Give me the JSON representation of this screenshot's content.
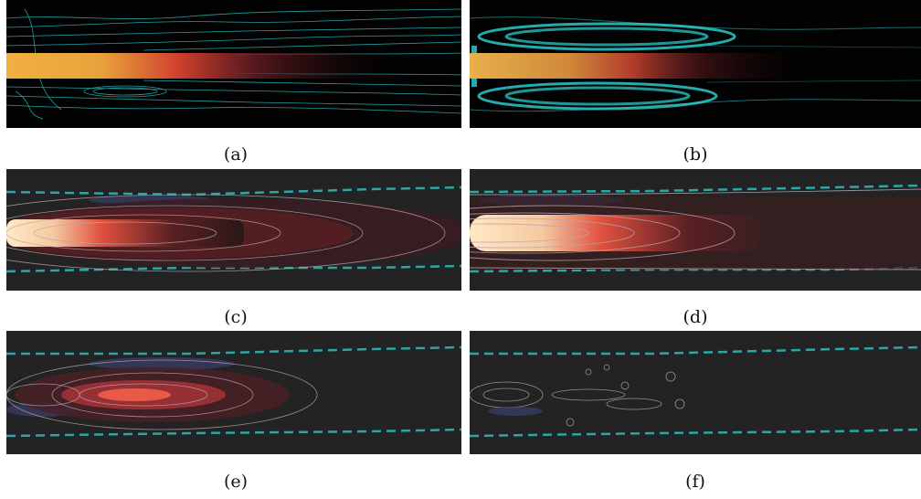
{
  "figure": {
    "panels": [
      {
        "id": "a",
        "caption": "(a)",
        "style": "streamlines-instantaneous"
      },
      {
        "id": "b",
        "caption": "(b)",
        "style": "streamlines-averaged"
      },
      {
        "id": "c",
        "caption": "(c)",
        "style": "contours-noisy-jet"
      },
      {
        "id": "d",
        "caption": "(d)",
        "style": "contours-smooth-jet"
      },
      {
        "id": "e",
        "caption": "(e)",
        "style": "contours-mode"
      },
      {
        "id": "f",
        "caption": "(f)",
        "style": "contours-residual"
      }
    ],
    "colors": {
      "background_dark": "#020202",
      "contour_background": "#232323",
      "streamline": "#2fd6d6",
      "boundary_dashed": "#2aa7a7",
      "jet_core": "#ffe9c4",
      "jet_mid": "#e85a45",
      "jet_outer": "#5a1f22",
      "negative_lobe": "#3a3f6a",
      "contour_line": "#b9a6ad"
    }
  }
}
